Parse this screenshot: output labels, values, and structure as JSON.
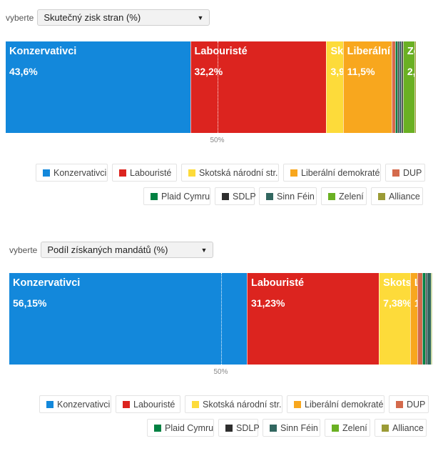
{
  "colors": {
    "Konzervativci": "#1388DB",
    "Labouristé": "#DC241F",
    "Skotská národní str.": "#FDDB3A",
    "Liberální demokraté": "#F8A71E",
    "DUP": "#D46A4C",
    "Plaid Cymru": "#008142",
    "SDLP": "#2E2E2E",
    "Sinn Féin": "#326760",
    "Zelení": "#6AB023",
    "Alliance": "#9B9B36",
    "Ostatní": "#5a5a5a"
  },
  "chart_data": [
    {
      "type": "bar",
      "stacked": true,
      "orientation": "horizontal",
      "selector_label": "vyberte",
      "selector_value": "Skutečný zisk stran (%)",
      "midpoint_label": "50%",
      "xlim": [
        0,
        100
      ],
      "segments": [
        {
          "name": "Konzervativci",
          "value": 43.6,
          "label": "43,6%"
        },
        {
          "name": "Labouristé",
          "value": 32.2,
          "label": "32,2%"
        },
        {
          "name": "Skotská národní str.",
          "short": "Sk",
          "value": 3.9,
          "label": "3,9"
        },
        {
          "name": "Liberální demokraté",
          "short": "Liberální",
          "value": 11.5,
          "label": "11,5%"
        },
        {
          "name": "DUP",
          "value": 0.8
        },
        {
          "name": "Plaid Cymru",
          "value": 0.5
        },
        {
          "name": "SDLP",
          "value": 0.4
        },
        {
          "name": "Sinn Féin",
          "value": 0.6
        },
        {
          "name": "Ostatní",
          "value": 0.4
        },
        {
          "name": "Zelení",
          "short": "Ze",
          "value": 2.7,
          "label": "2,"
        },
        {
          "name": "Alliance",
          "value": 0.4
        }
      ],
      "legend": [
        "Konzervativci",
        "Labouristé",
        "Skotská národní str.",
        "Liberální demokraté",
        "DUP",
        "Plaid Cymru",
        "SDLP",
        "Sinn Féin",
        "Zelení",
        "Alliance"
      ]
    },
    {
      "type": "bar",
      "stacked": true,
      "orientation": "horizontal",
      "selector_label": "vyberte",
      "selector_value": "Podíl získaných mandátů (%)",
      "midpoint_label": "50%",
      "xlim": [
        0,
        100
      ],
      "segments": [
        {
          "name": "Konzervativci",
          "value": 56.15,
          "label": "56,15%"
        },
        {
          "name": "Labouristé",
          "value": 31.23,
          "label": "31,23%"
        },
        {
          "name": "Skotská národní str.",
          "short": "Skots",
          "value": 7.38,
          "label": "7,38%"
        },
        {
          "name": "Liberální demokraté",
          "short": "L",
          "value": 1.69,
          "label": "1"
        },
        {
          "name": "DUP",
          "value": 1.23
        },
        {
          "name": "Plaid Cymru",
          "value": 0.62
        },
        {
          "name": "SDLP",
          "value": 0.31
        },
        {
          "name": "Sinn Féin",
          "value": 1.08
        },
        {
          "name": "Zelení",
          "value": 0.15
        },
        {
          "name": "Alliance",
          "value": 0.16
        }
      ],
      "legend": [
        "Konzervativci",
        "Labouristé",
        "Skotská národní str.",
        "Liberální demokraté",
        "DUP",
        "Plaid Cymru",
        "SDLP",
        "Sinn Féin",
        "Zelení",
        "Alliance"
      ]
    }
  ]
}
